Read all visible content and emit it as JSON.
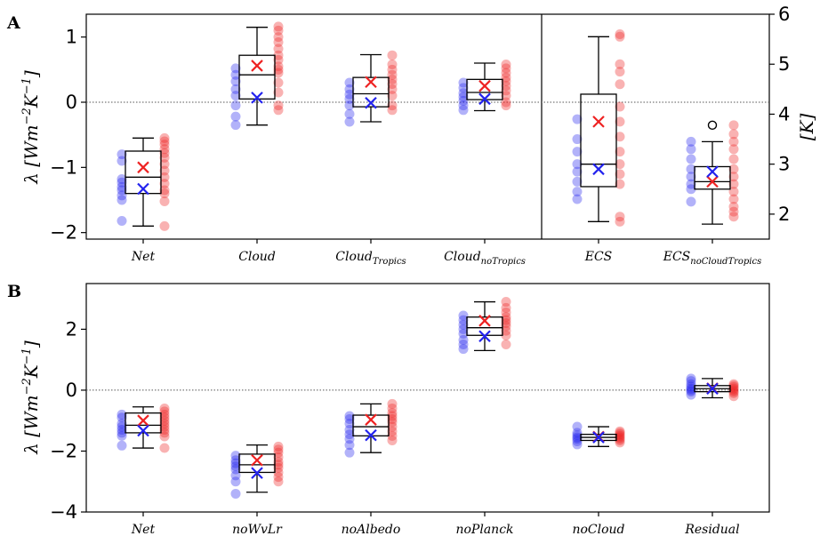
{
  "chart_data": [
    {
      "panel": "A",
      "type": "box",
      "ylabel": {
        "lambda": "λ",
        "main": "[Wm",
        "sup1": "−2",
        "mid": "K",
        "sup2": "−1",
        "end": "]"
      },
      "ylim": [
        -2.1,
        1.35
      ],
      "yticks": [
        -2,
        -1,
        0,
        1
      ],
      "right_axis": {
        "ylabel": "[K]",
        "ylim": [
          1.5,
          6.0
        ],
        "ticks": [
          2,
          3,
          4,
          5,
          6
        ]
      },
      "zero_line": true,
      "colors": {
        "group1": "#2222ee",
        "group2": "#ee2222",
        "box": "#000000"
      },
      "categories": [
        {
          "label": "Net",
          "sub": "",
          "axis": "left",
          "box": {
            "whislo": -1.9,
            "q1": -1.4,
            "med": -1.15,
            "q3": -0.75,
            "whishi": -0.55
          },
          "fliers": [],
          "group1": {
            "mean": -1.33,
            "points": [
              -1.82,
              -1.5,
              -1.43,
              -1.35,
              -1.3,
              -1.23,
              -1.18,
              -0.9,
              -0.8
            ]
          },
          "group2": {
            "mean": -1.0,
            "points": [
              -1.9,
              -1.52,
              -1.4,
              -1.35,
              -1.25,
              -1.15,
              -1.05,
              -0.95,
              -0.85,
              -0.78,
              -0.72,
              -0.65,
              -0.6,
              -0.55
            ]
          }
        },
        {
          "label": "Cloud",
          "sub": "",
          "axis": "left",
          "box": {
            "whislo": -0.35,
            "q1": 0.05,
            "med": 0.42,
            "q3": 0.72,
            "whishi": 1.15
          },
          "fliers": [],
          "group1": {
            "mean": 0.07,
            "points": [
              -0.35,
              -0.22,
              -0.05,
              0.1,
              0.2,
              0.32,
              0.42,
              0.52
            ]
          },
          "group2": {
            "mean": 0.56,
            "points": [
              -0.12,
              -0.05,
              0.15,
              0.3,
              0.45,
              0.5,
              0.55,
              0.65,
              0.72,
              0.82,
              0.92,
              1.0,
              1.1,
              1.16
            ]
          }
        },
        {
          "label": "Cloud",
          "sub": "Tropics",
          "axis": "left",
          "box": {
            "whislo": -0.3,
            "q1": -0.07,
            "med": 0.13,
            "q3": 0.38,
            "whishi": 0.73
          },
          "fliers": [],
          "group1": {
            "mean": -0.01,
            "points": [
              -0.3,
              -0.18,
              -0.05,
              0.05,
              0.12,
              0.2,
              0.3
            ]
          },
          "group2": {
            "mean": 0.31,
            "points": [
              -0.12,
              -0.05,
              0.1,
              0.2,
              0.28,
              0.35,
              0.42,
              0.5,
              0.58,
              0.72
            ]
          }
        },
        {
          "label": "Cloud",
          "sub": "noTropics",
          "axis": "left",
          "box": {
            "whislo": -0.13,
            "q1": 0.04,
            "med": 0.15,
            "q3": 0.35,
            "whishi": 0.6
          },
          "fliers": [],
          "group1": {
            "mean": 0.05,
            "points": [
              -0.12,
              -0.05,
              0.02,
              0.08,
              0.14,
              0.22,
              0.3
            ]
          },
          "group2": {
            "mean": 0.25,
            "points": [
              -0.05,
              0.0,
              0.1,
              0.18,
              0.25,
              0.32,
              0.38,
              0.45,
              0.52,
              0.58
            ]
          }
        },
        {
          "label": "ECS",
          "sub": "",
          "axis": "right",
          "box": {
            "whislo": 1.85,
            "q1": 2.55,
            "med": 3.0,
            "q3": 4.4,
            "whishi": 5.55
          },
          "fliers": [],
          "group1": {
            "mean": 2.9,
            "points": [
              2.3,
              2.45,
              2.65,
              2.85,
              3.0,
              3.25,
              3.5,
              3.9
            ]
          },
          "group2": {
            "mean": 3.85,
            "points": [
              1.85,
              1.95,
              2.6,
              2.8,
              3.0,
              3.25,
              3.55,
              3.85,
              4.15,
              4.6,
              4.85,
              5.0,
              5.55,
              5.6
            ]
          }
        },
        {
          "label": "ECS",
          "sub": "noCloudTropics",
          "axis": "right",
          "box": {
            "whislo": 1.8,
            "q1": 2.5,
            "med": 2.65,
            "q3": 2.95,
            "whishi": 3.45
          },
          "fliers": [
            3.78
          ],
          "group1": {
            "mean": 2.85,
            "points": [
              2.25,
              2.5,
              2.6,
              2.75,
              2.9,
              3.1,
              3.3,
              3.45
            ]
          },
          "group2": {
            "mean": 2.65,
            "points": [
              1.95,
              2.05,
              2.15,
              2.3,
              2.45,
              2.6,
              2.75,
              2.9,
              3.1,
              3.3,
              3.45,
              3.6,
              3.78
            ]
          }
        }
      ]
    },
    {
      "panel": "B",
      "type": "box",
      "ylabel": {
        "lambda": "λ",
        "main": "[Wm",
        "sup1": "−2",
        "mid": "K",
        "sup2": "−1",
        "end": "]"
      },
      "ylim": [
        -4.0,
        3.5
      ],
      "yticks": [
        -4,
        -2,
        0,
        2
      ],
      "zero_line": true,
      "colors": {
        "group1": "#2222ee",
        "group2": "#ee2222",
        "box": "#000000"
      },
      "categories": [
        {
          "label": "Net",
          "sub": "",
          "box": {
            "whislo": -1.9,
            "q1": -1.4,
            "med": -1.15,
            "q3": -0.75,
            "whishi": -0.55
          },
          "fliers": [],
          "group1": {
            "mean": -1.33,
            "points": [
              -1.82,
              -1.5,
              -1.4,
              -1.3,
              -1.2,
              -1.1,
              -0.9,
              -0.8
            ]
          },
          "group2": {
            "mean": -1.0,
            "points": [
              -1.9,
              -1.52,
              -1.4,
              -1.3,
              -1.2,
              -1.1,
              -1.0,
              -0.9,
              -0.8,
              -0.7,
              -0.6
            ]
          }
        },
        {
          "label": "noWvLr",
          "sub": "",
          "box": {
            "whislo": -3.35,
            "q1": -2.7,
            "med": -2.45,
            "q3": -2.1,
            "whishi": -1.8
          },
          "fliers": [],
          "group1": {
            "mean": -2.72,
            "points": [
              -3.4,
              -3.0,
              -2.8,
              -2.6,
              -2.5,
              -2.4,
              -2.3,
              -2.15
            ]
          },
          "group2": {
            "mean": -2.3,
            "points": [
              -3.0,
              -2.85,
              -2.7,
              -2.55,
              -2.45,
              -2.35,
              -2.2,
              -2.05,
              -1.95,
              -1.85
            ]
          }
        },
        {
          "label": "noAlbedo",
          "sub": "",
          "box": {
            "whislo": -2.05,
            "q1": -1.5,
            "med": -1.2,
            "q3": -0.82,
            "whishi": -0.45
          },
          "fliers": [],
          "group1": {
            "mean": -1.48,
            "points": [
              -2.05,
              -1.8,
              -1.6,
              -1.45,
              -1.3,
              -1.1,
              -0.95,
              -0.85
            ]
          },
          "group2": {
            "mean": -0.97,
            "points": [
              -1.65,
              -1.5,
              -1.35,
              -1.2,
              -1.05,
              -0.95,
              -0.85,
              -0.75,
              -0.6,
              -0.45
            ]
          }
        },
        {
          "label": "noPlanck",
          "sub": "",
          "box": {
            "whislo": 1.3,
            "q1": 1.8,
            "med": 2.05,
            "q3": 2.4,
            "whishi": 2.9
          },
          "fliers": [],
          "group1": {
            "mean": 1.77,
            "points": [
              1.35,
              1.5,
              1.65,
              1.85,
              2.0,
              2.15,
              2.3,
              2.45
            ]
          },
          "group2": {
            "mean": 2.28,
            "points": [
              1.5,
              1.8,
              1.95,
              2.1,
              2.2,
              2.3,
              2.4,
              2.55,
              2.7,
              2.9
            ]
          }
        },
        {
          "label": "noCloud",
          "sub": "",
          "box": {
            "whislo": -1.85,
            "q1": -1.65,
            "med": -1.55,
            "q3": -1.45,
            "whishi": -1.2
          },
          "fliers": [],
          "group1": {
            "mean": -1.55,
            "points": [
              -1.78,
              -1.68,
              -1.6,
              -1.55,
              -1.48,
              -1.4,
              -1.2
            ]
          },
          "group2": {
            "mean": -1.53,
            "points": [
              -1.72,
              -1.65,
              -1.6,
              -1.55,
              -1.5,
              -1.45,
              -1.4,
              -1.35
            ]
          }
        },
        {
          "label": "Residual",
          "sub": "",
          "box": {
            "whislo": -0.25,
            "q1": -0.05,
            "med": 0.05,
            "q3": 0.15,
            "whishi": 0.38
          },
          "fliers": [],
          "group1": {
            "mean": 0.05,
            "points": [
              -0.15,
              -0.05,
              0.0,
              0.05,
              0.12,
              0.2,
              0.3,
              0.38
            ]
          },
          "group2": {
            "mean": 0.06,
            "points": [
              -0.2,
              -0.1,
              -0.05,
              0.0,
              0.05,
              0.1,
              0.15,
              0.2
            ]
          }
        }
      ]
    }
  ]
}
